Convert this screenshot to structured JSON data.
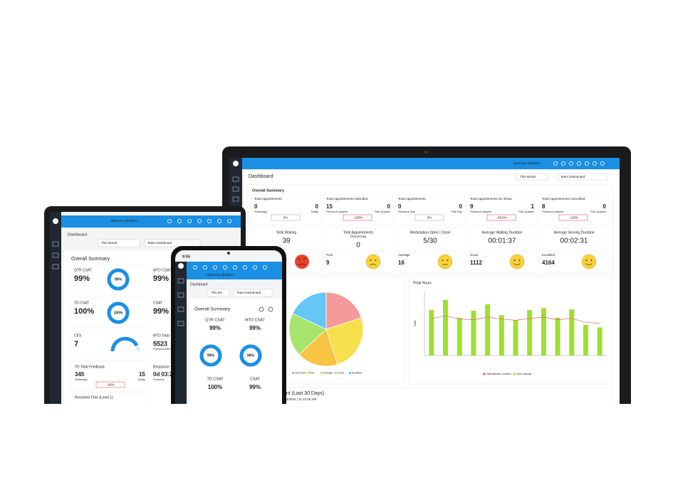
{
  "laptop": {
    "welcome": "Welcome qfAdmin !",
    "title": "Dashboard",
    "filters": [
      "This Month",
      "Team Dashboard"
    ],
    "section": "Overall Summary",
    "cards": [
      {
        "title": "Total Appointments",
        "left": 0,
        "left_label": "Yesterday",
        "right": 0,
        "right_label": "Today",
        "change": "0%"
      },
      {
        "title": "Total Appointments Attended",
        "left": 15,
        "left_label": "Previous Quarter",
        "right": 0,
        "right_label": "This Quarter",
        "change": "- 100%"
      },
      {
        "title": "Total Appointments",
        "left": 0,
        "left_label": "Previous Day",
        "right": 0,
        "right_label": "This Day",
        "change": "0%"
      },
      {
        "title": "Total Appointments No Show",
        "left": 9,
        "left_label": "Previous Quarter",
        "right": 1,
        "right_label": "This Quarter",
        "change": "- 88.9%"
      },
      {
        "title": "Total Appointments Cancelled",
        "left": 8,
        "left_label": "Previous Quarter",
        "right": 0,
        "right_label": "This Quarter",
        "change": "- 100%"
      }
    ],
    "stats": [
      {
        "title": "Total Waiting",
        "value": 39
      },
      {
        "title": "Total Appointments",
        "subtitle": "(Tomorrow)",
        "value": 0
      },
      {
        "title": "Workstation Open / Close",
        "value": "5/30"
      },
      {
        "title": "Average Waiting Duration",
        "value": "00:01:37"
      },
      {
        "title": "Average Serving Duration",
        "value": "00:02:31"
      }
    ],
    "feedback": [
      {
        "label": "Poor",
        "value": 9
      },
      {
        "label": "Average",
        "value": 16
      },
      {
        "label": "Good",
        "value": 1112
      },
      {
        "label": "Excellent",
        "value": 4164
      }
    ],
    "footer_title": "ent (Last 30 Days)",
    "footer_date": "/03/2024 | 11:21:05 AM"
  },
  "chart_data": [
    {
      "type": "pie",
      "categories": [
        "Very Poor",
        "Poor",
        "Average",
        "Good",
        "Excellent"
      ],
      "values": [
        20,
        25,
        18,
        19,
        18
      ],
      "colors": [
        "#f59a9a",
        "#f6e04e",
        "#f7c443",
        "#a8e36b",
        "#66c6f5"
      ]
    },
    {
      "type": "bar",
      "title": "Peak Hours",
      "y_label": "Total",
      "ylim": [
        0,
        100
      ],
      "series": [
        {
          "name": "Total Attended Customer",
          "color": "#e2605a",
          "type": "line",
          "values": [
            58,
            62,
            57,
            56,
            60,
            57,
            55,
            58,
            60,
            56,
            58,
            52,
            50
          ]
        },
        {
          "name": "Total Customer",
          "color": "#9fe02f",
          "type": "bar",
          "values": [
            71,
            87,
            59,
            70,
            80,
            63,
            55,
            71,
            74,
            59,
            72,
            48,
            44
          ]
        }
      ]
    }
  ],
  "tablet": {
    "welcome": "Welcome qfAdmin !",
    "title": "Dashboard",
    "filters": [
      "This Month",
      "Team Dashboard"
    ],
    "section": "Overall Summary",
    "qtr_csat": {
      "title": "QTR CSAT",
      "value": "99%",
      "ring": "99%"
    },
    "mtd_csat": {
      "title": "MTD CSAT",
      "value": "99%"
    },
    "td_csat": {
      "title": "TD CSAT",
      "value": "100%",
      "ring": "100%"
    },
    "csat": {
      "title": "CSAT",
      "value": "99%"
    },
    "ces": {
      "title": "CES",
      "value": 7
    },
    "mtd_total": {
      "title": "MTD Total",
      "value": 5523,
      "label": "Previous Mon"
    },
    "td_feedback": {
      "title": "TD Total Feedback",
      "left": 345,
      "left_label": "Yesterday",
      "right": 15,
      "right_label": "Today",
      "change": "- 96%"
    },
    "response": {
      "title": "Response",
      "value": "0d 03:2",
      "label": "Previous"
    },
    "resolved": "Resolved Time (Level 1)"
  },
  "phone": {
    "time": "9:55",
    "welcome": "Welcome qfAdmin !",
    "title": "Dashboard",
    "filters": [
      "This Mo",
      "Team Dashboard"
    ],
    "section": "Overall Summary",
    "cards": [
      {
        "title": "QTR CSAT",
        "value": "99%",
        "ring": "99%"
      },
      {
        "title": "MTD CSAT",
        "value": "99%",
        "ring": "99%"
      },
      {
        "title": "TD CSAT",
        "value": "100%"
      },
      {
        "title": "CSAT",
        "value": "99%"
      }
    ]
  }
}
